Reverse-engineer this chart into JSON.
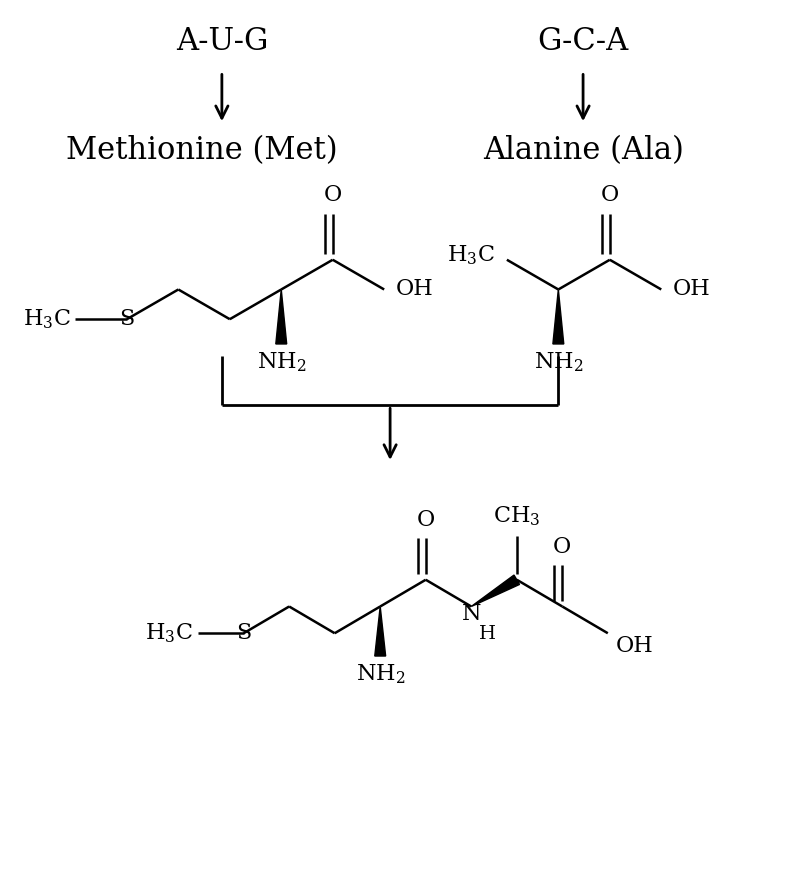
{
  "bg_color": "#ffffff",
  "figsize": [
    8.0,
    8.93
  ],
  "dpi": 100,
  "codon1": "A-U-G",
  "codon2": "G-C-A",
  "aa1_name": "Methionine (Met)",
  "aa2_name": "Alanine (Ala)",
  "font_codon": 22,
  "font_name": 22,
  "font_struct": 16,
  "font_struct_small": 14,
  "black": "#000000"
}
